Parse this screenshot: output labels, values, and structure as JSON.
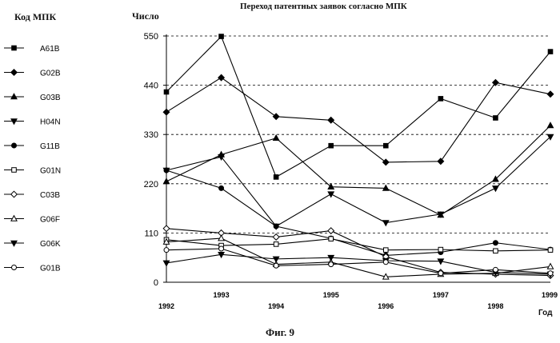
{
  "legend_title": "Код МПК",
  "figure_caption": "Фиг. 9",
  "chart_data": {
    "type": "line",
    "title": "Переход патентных заявок согласно МПК",
    "ylabel": "Число",
    "xlabel": "Год",
    "x": [
      "1992",
      "1993",
      "1994",
      "1995",
      "1996",
      "1997",
      "1998",
      "1999"
    ],
    "ylim": [
      0,
      550
    ],
    "yticks": [
      "0",
      "110",
      "220",
      "330",
      "440",
      "550"
    ],
    "grid": "horizontal dashed",
    "legend_position": "left",
    "series": [
      {
        "name": "A61B",
        "marker": "square-filled",
        "values": [
          425,
          549,
          235,
          305,
          305,
          410,
          367,
          515
        ]
      },
      {
        "name": "G02B",
        "marker": "diamond-filled",
        "values": [
          380,
          457,
          370,
          362,
          268,
          270,
          446,
          420
        ]
      },
      {
        "name": "G03B",
        "marker": "triangle-up-filled",
        "values": [
          225,
          285,
          322,
          213,
          210,
          150,
          230,
          350
        ]
      },
      {
        "name": "H04N",
        "marker": "triangle-down-filled",
        "values": [
          250,
          280,
          125,
          197,
          133,
          152,
          210,
          325
        ]
      },
      {
        "name": "G11B",
        "marker": "circle-filled",
        "values": [
          250,
          210,
          125,
          98,
          60,
          67,
          88,
          73
        ]
      },
      {
        "name": "G01N",
        "marker": "square-open",
        "values": [
          95,
          82,
          85,
          97,
          72,
          73,
          70,
          72
        ]
      },
      {
        "name": "C03B",
        "marker": "diamond-open",
        "values": [
          120,
          110,
          101,
          115,
          57,
          22,
          18,
          15
        ]
      },
      {
        "name": "G06F",
        "marker": "triangle-up-open",
        "values": [
          90,
          98,
          40,
          45,
          12,
          18,
          20,
          35
        ]
      },
      {
        "name": "G06K",
        "marker": "triangle-down-filled",
        "values": [
          43,
          62,
          52,
          55,
          48,
          47,
          22,
          18
        ]
      },
      {
        "name": "G01B",
        "marker": "circle-open",
        "values": [
          72,
          75,
          37,
          40,
          45,
          20,
          28,
          20
        ]
      }
    ]
  }
}
